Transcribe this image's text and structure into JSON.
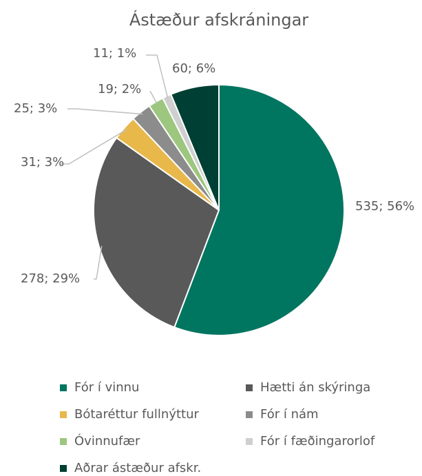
{
  "chart_data": {
    "type": "pie",
    "title": "Ástæður afskráningar",
    "categories": [
      "Fór í vinnu",
      "Hætti án skýringa",
      "Bótaréttur fullnýttur",
      "Fór í nám",
      "Óvinnufær",
      "Fór í fæðingarorlof",
      "Aðrar ástæður afskr."
    ],
    "values": [
      535,
      278,
      31,
      25,
      19,
      11,
      60
    ],
    "value_labels": [
      "535; 56%",
      "278; 29%",
      "31; 3%",
      "25; 3%",
      "19; 2%",
      "11; 1%",
      "60; 6%"
    ],
    "colors": [
      "#007560",
      "#595959",
      "#e8b84b",
      "#8c8c8c",
      "#9dc67e",
      "#cfcfcf",
      "#003f33"
    ],
    "legend": "bottom"
  }
}
